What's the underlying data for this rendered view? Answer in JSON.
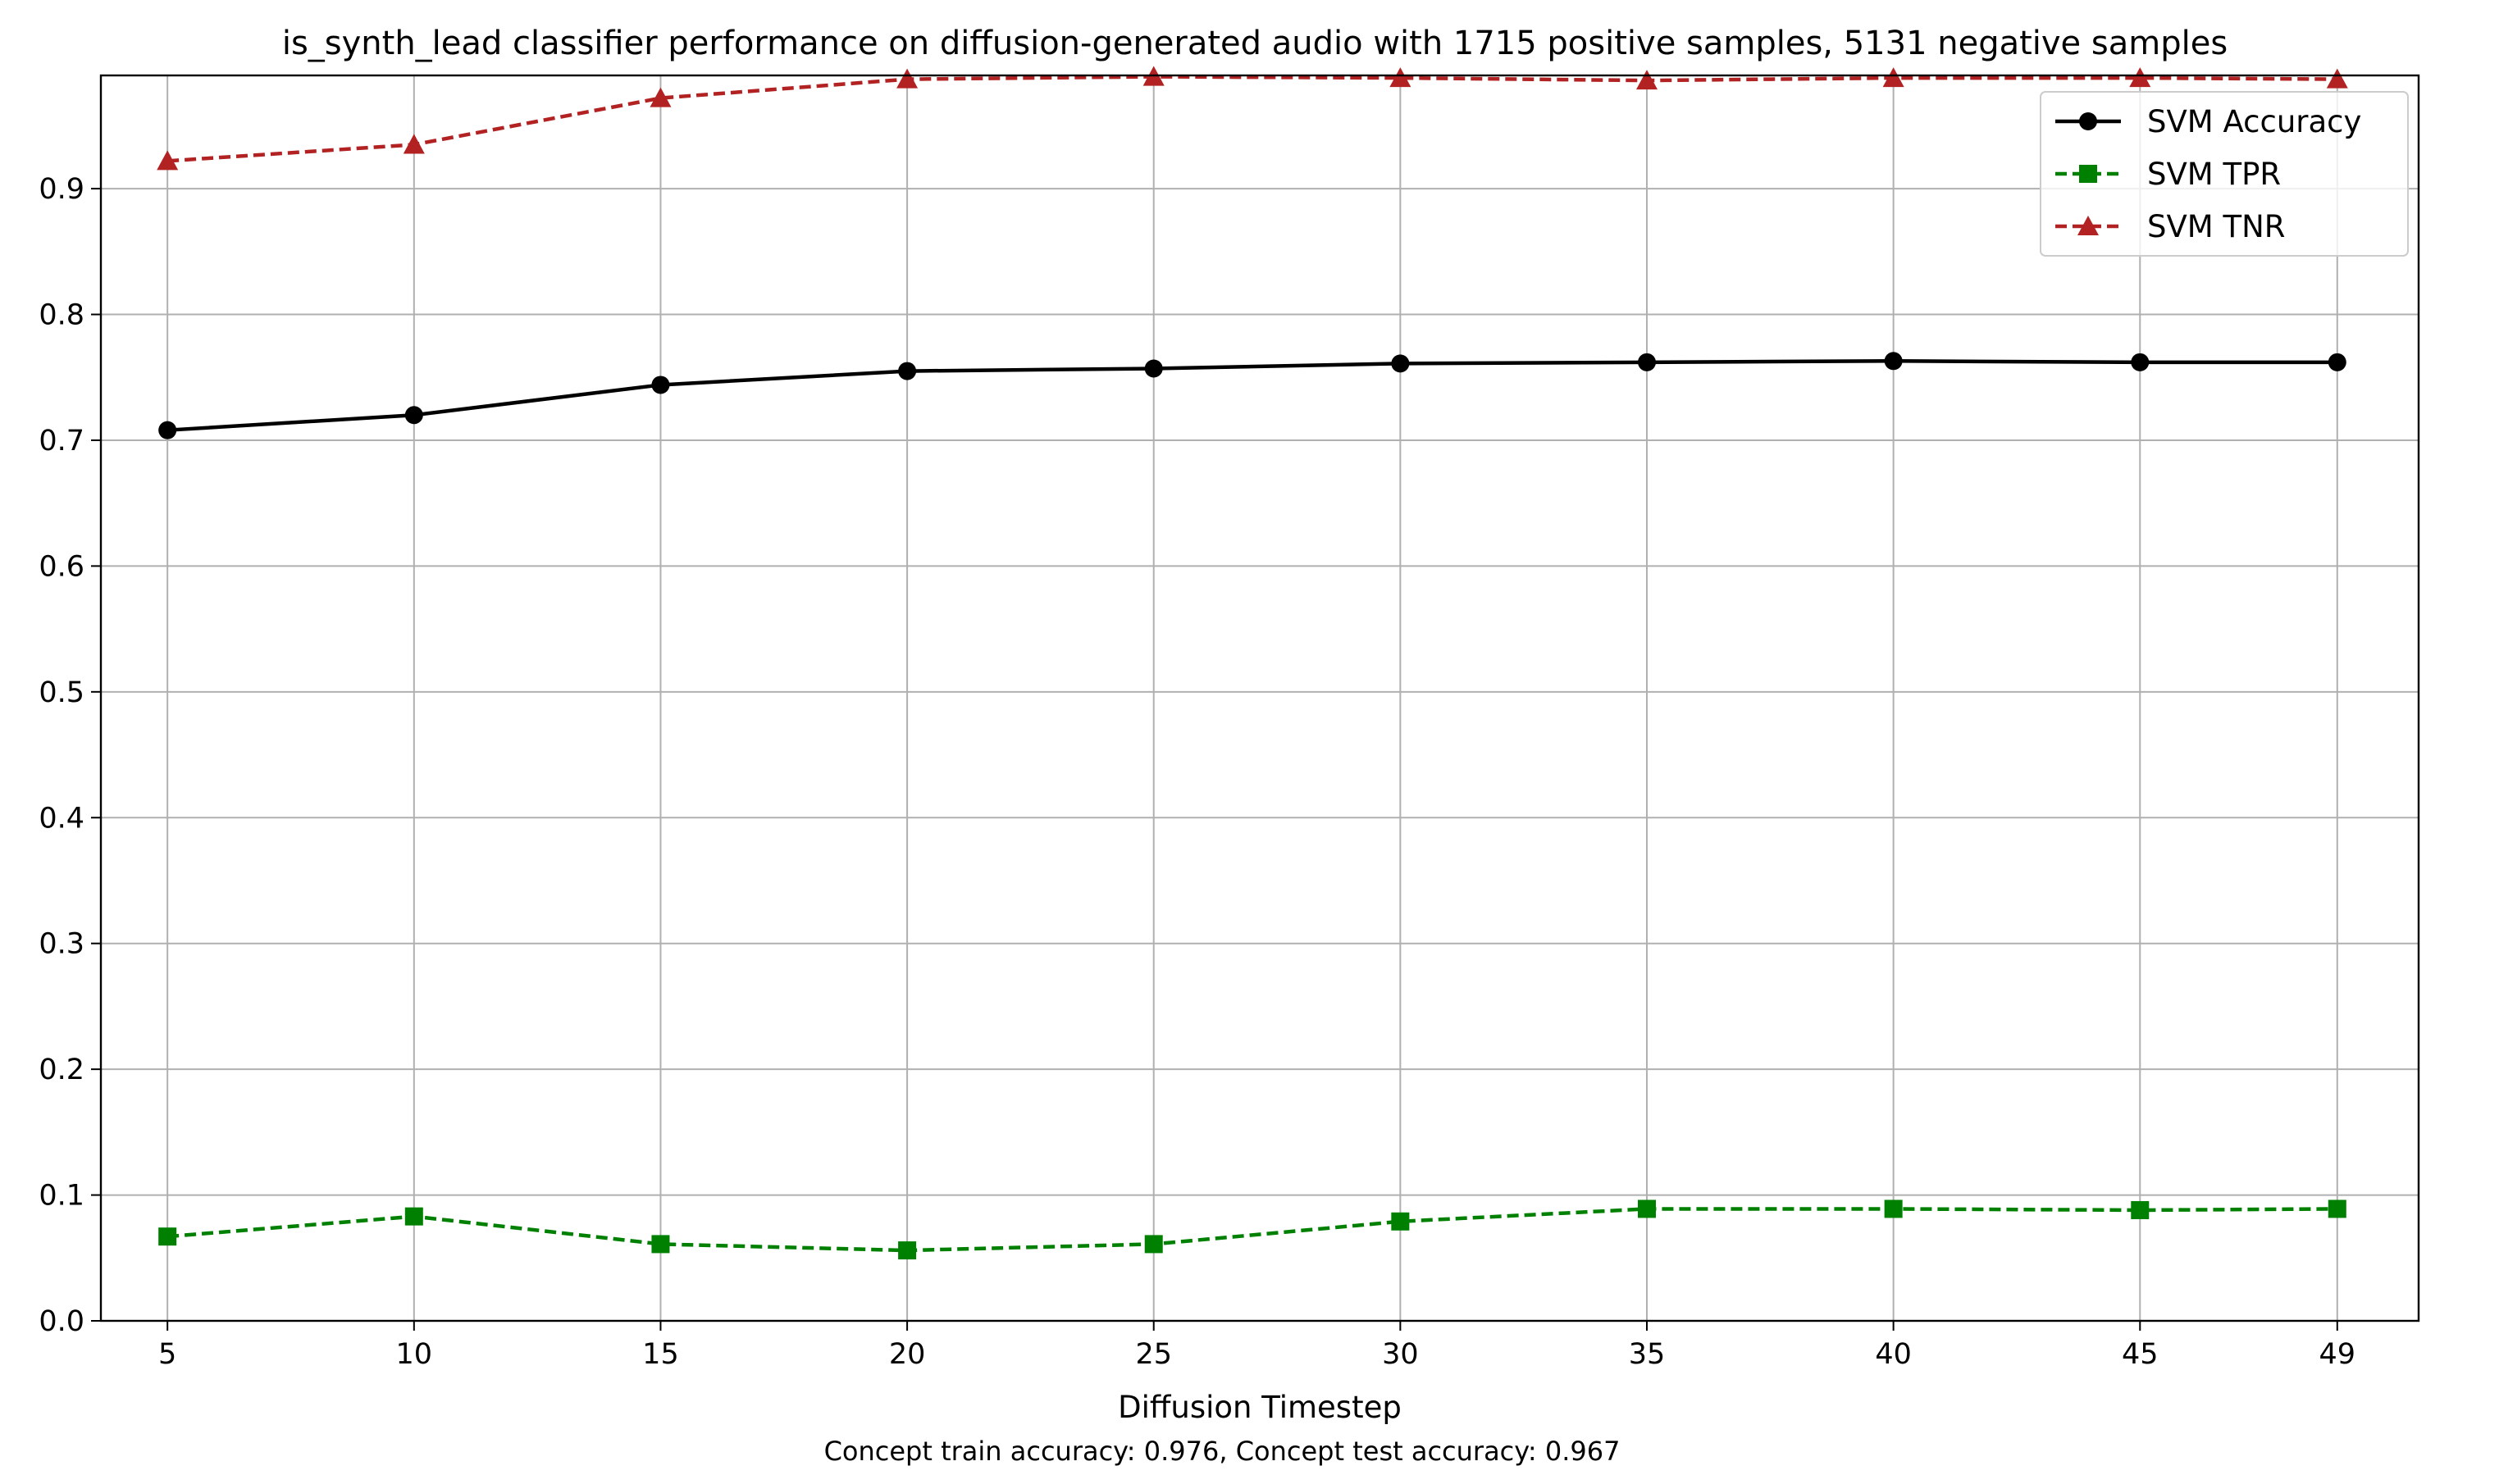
{
  "chart_data": {
    "type": "line",
    "title": "is_synth_lead classifier performance on diffusion-generated audio with 1715 positive samples, 5131 negative samples",
    "xlabel": "Diffusion Timestep",
    "ylabel": "",
    "caption": "Concept train accuracy: 0.976, Concept test accuracy: 0.967",
    "x": [
      5,
      10,
      15,
      20,
      25,
      30,
      35,
      40,
      45,
      49
    ],
    "x_ticks": [
      "5",
      "10",
      "15",
      "20",
      "25",
      "30",
      "35",
      "40",
      "45",
      "49"
    ],
    "y_ticks": [
      "0.0",
      "0.1",
      "0.2",
      "0.3",
      "0.4",
      "0.5",
      "0.6",
      "0.7",
      "0.8",
      "0.9"
    ],
    "ylim": [
      0.0,
      1.0
    ],
    "grid": true,
    "legend_position": "top-right",
    "series": [
      {
        "name": "SVM Accuracy",
        "color": "#000000",
        "line_style": "solid",
        "marker": "circle",
        "values": [
          0.708,
          0.72,
          0.744,
          0.755,
          0.757,
          0.761,
          0.762,
          0.763,
          0.762,
          0.762
        ]
      },
      {
        "name": "SVM TPR",
        "color": "#008000",
        "line_style": "dashed",
        "marker": "square",
        "values": [
          0.067,
          0.083,
          0.061,
          0.056,
          0.061,
          0.079,
          0.089,
          0.089,
          0.088,
          0.089
        ]
      },
      {
        "name": "SVM TNR",
        "color": "#b22222",
        "line_style": "dashed",
        "marker": "triangle",
        "values": [
          0.922,
          0.935,
          0.972,
          0.987,
          0.989,
          0.988,
          0.986,
          0.988,
          0.988,
          0.987
        ]
      }
    ]
  }
}
